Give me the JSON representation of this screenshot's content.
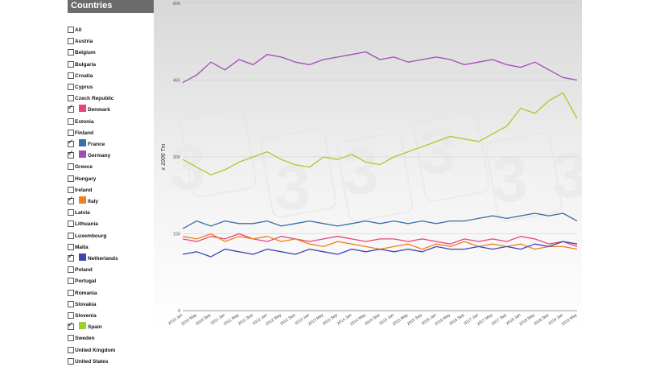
{
  "panel": {
    "title": "Countries",
    "countries": [
      {
        "name": "All",
        "checked": false
      },
      {
        "name": "Austria",
        "checked": false
      },
      {
        "name": "Belgium",
        "checked": false
      },
      {
        "name": "Bulgaria",
        "checked": false
      },
      {
        "name": "Croatia",
        "checked": false
      },
      {
        "name": "Cyprus",
        "checked": false
      },
      {
        "name": "Czech Republic",
        "checked": false
      },
      {
        "name": "Denmark",
        "checked": true,
        "color": "#e8457c"
      },
      {
        "name": "Estonia",
        "checked": false
      },
      {
        "name": "Finland",
        "checked": false
      },
      {
        "name": "France",
        "checked": true,
        "color": "#3c6ea8"
      },
      {
        "name": "Germany",
        "checked": true,
        "color": "#a24bb5"
      },
      {
        "name": "Greece",
        "checked": false
      },
      {
        "name": "Hungary",
        "checked": false
      },
      {
        "name": "Ireland",
        "checked": false
      },
      {
        "name": "Italy",
        "checked": true,
        "color": "#f07f1c"
      },
      {
        "name": "Latvia",
        "checked": false
      },
      {
        "name": "Lithuania",
        "checked": false
      },
      {
        "name": "Luxembourg",
        "checked": false
      },
      {
        "name": "Malta",
        "checked": false
      },
      {
        "name": "Netherlands",
        "checked": true,
        "color": "#4046b0"
      },
      {
        "name": "Poland",
        "checked": false
      },
      {
        "name": "Portugal",
        "checked": false
      },
      {
        "name": "Romania",
        "checked": false
      },
      {
        "name": "Slovakia",
        "checked": false
      },
      {
        "name": "Slovenia",
        "checked": false
      },
      {
        "name": "Spain",
        "checked": true,
        "color": "#9fcf2a"
      },
      {
        "name": "Sweden",
        "checked": false
      },
      {
        "name": "United Kingdom",
        "checked": false
      },
      {
        "name": "United States",
        "checked": false
      }
    ]
  },
  "chart_data": {
    "type": "line",
    "ylabel": "x 1000 Tm",
    "ylim": [
      0,
      600
    ],
    "yticks": [
      0,
      150,
      300,
      450,
      600
    ],
    "grid": true,
    "x": [
      "2010 Jan",
      "2010 May",
      "2010 Sep",
      "2011 Jan",
      "2011 May",
      "2011 Sep",
      "2012 Jan",
      "2012 May",
      "2012 Sep",
      "2013 Jan",
      "2013 May",
      "2013 Sep",
      "2014 Jan",
      "2014 May",
      "2014 Sep",
      "2015 Jan",
      "2015 May",
      "2015 Sep",
      "2016 Jan",
      "2016 May",
      "2016 Sep",
      "2017 Jan",
      "2017 May",
      "2017 Sep",
      "2018 Jan",
      "2018 May",
      "2018 Sep",
      "2019 Jan",
      "2019 May"
    ],
    "series": [
      {
        "name": "Germany",
        "color": "#a24bb5",
        "values": [
          445,
          460,
          485,
          470,
          490,
          480,
          500,
          495,
          485,
          480,
          490,
          495,
          500,
          505,
          490,
          495,
          485,
          490,
          495,
          490,
          480,
          485,
          490,
          480,
          475,
          485,
          470,
          455,
          450
        ]
      },
      {
        "name": "Spain",
        "color": "#9fcf2a",
        "values": [
          295,
          280,
          265,
          275,
          290,
          300,
          310,
          295,
          285,
          280,
          300,
          295,
          305,
          290,
          285,
          300,
          310,
          320,
          330,
          340,
          335,
          330,
          345,
          360,
          395,
          385,
          410,
          425,
          375
        ]
      },
      {
        "name": "France",
        "color": "#3c6ea8",
        "values": [
          160,
          175,
          165,
          175,
          170,
          170,
          175,
          165,
          170,
          175,
          170,
          165,
          170,
          175,
          170,
          175,
          170,
          175,
          170,
          175,
          175,
          180,
          185,
          180,
          185,
          190,
          185,
          190,
          175
        ]
      },
      {
        "name": "Denmark",
        "color": "#e8457c",
        "values": [
          140,
          135,
          145,
          140,
          150,
          140,
          135,
          145,
          140,
          135,
          140,
          145,
          140,
          135,
          140,
          140,
          135,
          140,
          135,
          130,
          140,
          135,
          140,
          135,
          145,
          140,
          130,
          135,
          125
        ]
      },
      {
        "name": "Italy",
        "color": "#f07f1c",
        "values": [
          145,
          140,
          150,
          135,
          145,
          140,
          145,
          135,
          140,
          130,
          125,
          135,
          130,
          125,
          120,
          125,
          130,
          120,
          130,
          125,
          135,
          125,
          130,
          125,
          130,
          120,
          125,
          125,
          120
        ]
      },
      {
        "name": "Netherlands",
        "color": "#4046b0",
        "values": [
          110,
          115,
          105,
          120,
          115,
          110,
          120,
          115,
          110,
          120,
          115,
          110,
          120,
          115,
          120,
          115,
          120,
          115,
          125,
          120,
          120,
          125,
          120,
          125,
          120,
          130,
          125,
          135,
          130
        ]
      }
    ]
  }
}
